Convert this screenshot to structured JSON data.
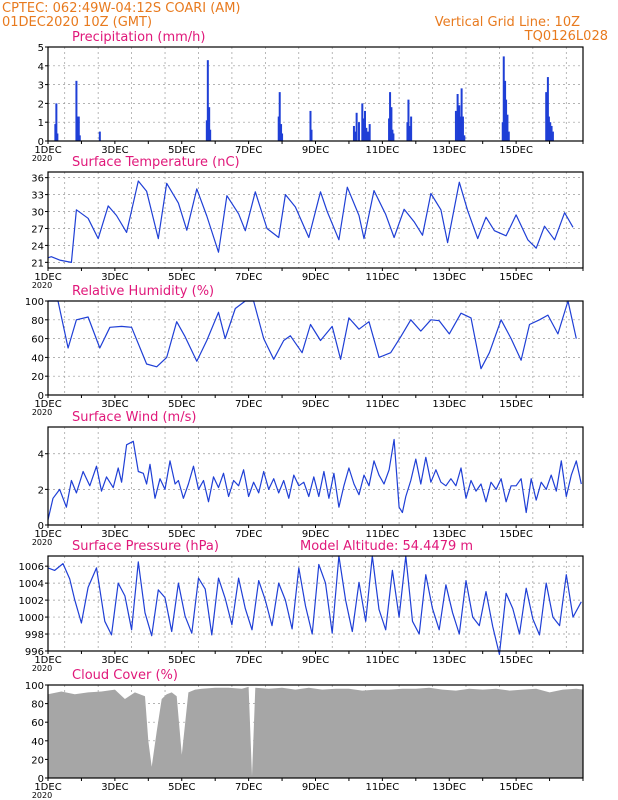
{
  "header": {
    "line1": "CPTEC:   062:49W-04:12S   COARI (AM)",
    "line2": "01DEC2020 10Z (GMT)",
    "right1": "Vertical Grid Line: 10Z",
    "right2": "TQ0126L028"
  },
  "colors": {
    "header": "#e87a1e",
    "title": "#e0187a",
    "series": "#1f3fd6",
    "cloud": "#a6a6a6",
    "grid": "#9a9a9a",
    "frame": "#000000"
  },
  "x_ticks": [
    "1DEC",
    "3DEC",
    "5DEC",
    "7DEC",
    "9DEC",
    "11DEC",
    "13DEC",
    "15DEC"
  ],
  "x_tick_overflow": "2020",
  "chart_data": [
    {
      "type": "bar",
      "title": "Precipitation (mm/h)",
      "ylim": [
        0,
        5
      ],
      "yticks": [
        "0",
        "1",
        "2",
        "3",
        "4",
        "5"
      ],
      "grid": true,
      "x_days": [
        0.22,
        0.25,
        0.28,
        0.85,
        0.88,
        0.92,
        0.95,
        1.55,
        4.75,
        4.78,
        4.82,
        4.85,
        6.9,
        6.93,
        6.97,
        7.0,
        7.85,
        7.88,
        9.15,
        9.2,
        9.23,
        9.3,
        9.4,
        9.43,
        9.48,
        9.52,
        9.57,
        9.62,
        10.2,
        10.23,
        10.27,
        10.3,
        10.33,
        10.75,
        10.78,
        10.82,
        10.86,
        12.2,
        12.25,
        12.3,
        12.33,
        12.37,
        12.41,
        12.45,
        13.6,
        13.63,
        13.67,
        13.7,
        13.74,
        13.78,
        14.9,
        14.95,
        14.98,
        15.02,
        15.06,
        15.1
      ],
      "values": [
        0.9,
        2.0,
        0.4,
        3.2,
        1.3,
        1.3,
        0.3,
        0.5,
        1.1,
        4.3,
        1.8,
        0.6,
        1.3,
        2.6,
        0.9,
        0.4,
        1.6,
        0.6,
        0.8,
        0.5,
        1.5,
        1.0,
        2.0,
        1.2,
        1.6,
        0.7,
        0.5,
        0.9,
        1.2,
        2.6,
        1.8,
        0.6,
        0.4,
        1.0,
        2.2,
        0.8,
        1.3,
        1.6,
        2.5,
        1.9,
        1.3,
        2.8,
        1.3,
        0.3,
        1.0,
        4.5,
        3.2,
        2.2,
        1.4,
        0.5,
        2.6,
        3.4,
        1.3,
        1.0,
        0.8,
        0.5
      ]
    },
    {
      "type": "line",
      "title": "Surface Temperature (nC)",
      "ylim": [
        20,
        37
      ],
      "yticks": [
        "21",
        "24",
        "27",
        "30",
        "33",
        "36"
      ],
      "grid": true,
      "x_days": [
        0.0,
        0.1,
        0.35,
        0.7,
        0.85,
        1.2,
        1.5,
        1.8,
        2.05,
        2.35,
        2.7,
        2.95,
        3.3,
        3.55,
        3.9,
        4.15,
        4.45,
        4.75,
        5.1,
        5.35,
        5.7,
        5.9,
        6.2,
        6.55,
        6.9,
        7.1,
        7.4,
        7.8,
        8.15,
        8.35,
        8.7,
        8.95,
        9.3,
        9.45,
        9.75,
        10.1,
        10.35,
        10.65,
        10.95,
        11.2,
        11.45,
        11.75,
        11.95,
        12.3,
        12.55,
        12.85,
        13.1,
        13.35,
        13.7,
        14.0,
        14.35,
        14.6,
        14.85,
        15.15,
        15.45,
        15.7
      ],
      "values": [
        21.8,
        22.0,
        21.4,
        21.0,
        30.3,
        28.8,
        25.2,
        31.0,
        29.3,
        26.3,
        35.4,
        33.6,
        25.2,
        35.0,
        31.5,
        26.7,
        34.0,
        29.2,
        22.8,
        32.8,
        29.6,
        26.6,
        33.5,
        27.0,
        25.4,
        33.0,
        30.8,
        25.4,
        33.5,
        30.0,
        25.0,
        34.3,
        29.3,
        25.2,
        33.7,
        29.5,
        25.4,
        30.4,
        28.2,
        25.8,
        33.2,
        30.3,
        24.5,
        35.2,
        30.2,
        25.2,
        29.0,
        26.6,
        25.7,
        29.4,
        25.0,
        23.5,
        27.4,
        25.0,
        29.8,
        27.2
      ]
    },
    {
      "type": "line",
      "title": "Relative Humidity (%)",
      "ylim": [
        0,
        100
      ],
      "yticks": [
        "0",
        "20",
        "40",
        "60",
        "80",
        "100"
      ],
      "grid": true,
      "x_days": [
        0.0,
        0.3,
        0.6,
        0.85,
        1.2,
        1.55,
        1.85,
        2.2,
        2.5,
        2.95,
        3.25,
        3.55,
        3.85,
        4.1,
        4.45,
        4.75,
        5.1,
        5.3,
        5.6,
        5.9,
        6.15,
        6.45,
        6.75,
        7.05,
        7.25,
        7.6,
        7.85,
        8.15,
        8.5,
        8.75,
        9.0,
        9.3,
        9.6,
        9.9,
        10.25,
        10.55,
        10.85,
        11.15,
        11.45,
        11.7,
        12.0,
        12.35,
        12.65,
        12.95,
        13.2,
        13.55,
        13.85,
        14.15,
        14.4,
        14.7,
        14.95,
        15.25,
        15.55,
        15.8
      ],
      "values": [
        100,
        100,
        50,
        80,
        83,
        50,
        72,
        73,
        72,
        33,
        30,
        40,
        78,
        62,
        36,
        58,
        88,
        60,
        92,
        100,
        100,
        60,
        38,
        58,
        63,
        45,
        75,
        58,
        73,
        38,
        82,
        70,
        78,
        40,
        45,
        62,
        80,
        68,
        80,
        79,
        65,
        87,
        82,
        28,
        45,
        80,
        60,
        37,
        75,
        80,
        85,
        65,
        100,
        60
      ]
    },
    {
      "type": "line",
      "title": "Surface Wind (m/s)",
      "ylim": [
        0,
        5.5
      ],
      "yticks": [
        "0",
        "2",
        "4"
      ],
      "grid": true,
      "x_days": [
        0.0,
        0.15,
        0.35,
        0.55,
        0.7,
        0.85,
        1.05,
        1.25,
        1.45,
        1.6,
        1.75,
        1.95,
        2.1,
        2.2,
        2.35,
        2.55,
        2.7,
        2.85,
        2.95,
        3.05,
        3.2,
        3.35,
        3.5,
        3.65,
        3.8,
        3.9,
        4.05,
        4.2,
        4.35,
        4.5,
        4.65,
        4.8,
        4.95,
        5.1,
        5.25,
        5.4,
        5.55,
        5.7,
        5.85,
        6.0,
        6.15,
        6.3,
        6.45,
        6.6,
        6.75,
        6.9,
        7.05,
        7.2,
        7.35,
        7.5,
        7.65,
        7.8,
        7.95,
        8.1,
        8.25,
        8.4,
        8.55,
        8.7,
        8.85,
        9.0,
        9.15,
        9.3,
        9.45,
        9.6,
        9.75,
        9.9,
        10.05,
        10.2,
        10.35,
        10.5,
        10.6,
        10.7,
        10.85,
        11.0,
        11.15,
        11.3,
        11.45,
        11.6,
        11.75,
        11.9,
        12.05,
        12.2,
        12.35,
        12.5,
        12.65,
        12.8,
        12.95,
        13.1,
        13.25,
        13.4,
        13.55,
        13.7,
        13.85,
        14.0,
        14.15,
        14.3,
        14.45,
        14.6,
        14.75,
        14.9,
        15.05,
        15.2,
        15.35,
        15.5,
        15.65,
        15.8,
        15.95
      ],
      "values": [
        0.3,
        1.5,
        2.0,
        1.0,
        2.5,
        1.8,
        3.0,
        2.2,
        3.3,
        1.9,
        2.7,
        2.1,
        3.2,
        2.4,
        4.5,
        4.7,
        3.0,
        2.9,
        2.3,
        3.4,
        1.5,
        2.6,
        2.0,
        3.6,
        2.3,
        2.5,
        1.5,
        2.3,
        3.3,
        2.0,
        2.5,
        1.3,
        2.7,
        2.1,
        2.9,
        1.6,
        2.5,
        2.2,
        3.1,
        1.6,
        2.4,
        1.8,
        3.0,
        2.0,
        2.6,
        1.8,
        2.5,
        1.5,
        2.8,
        2.2,
        2.4,
        1.6,
        2.7,
        1.6,
        3.0,
        1.5,
        2.9,
        1.0,
        2.2,
        3.2,
        2.3,
        1.7,
        2.8,
        2.2,
        3.6,
        2.8,
        2.3,
        3.1,
        4.8,
        1.0,
        0.7,
        1.6,
        2.5,
        3.7,
        2.3,
        3.8,
        2.4,
        3.1,
        2.4,
        2.2,
        2.6,
        2.2,
        3.2,
        1.5,
        2.5,
        1.9,
        2.3,
        1.3,
        2.4,
        2.0,
        2.6,
        1.3,
        2.2,
        2.2,
        2.6,
        0.7,
        2.6,
        1.4,
        2.4,
        2.0,
        2.8,
        1.9,
        3.6,
        1.6,
        2.8,
        3.6,
        2.3
      ]
    },
    {
      "type": "line",
      "title": "Surface Pressure (hPa)",
      "annotation": "Model Altitude: 54.4479 m",
      "ylim": [
        996,
        1007.2
      ],
      "yticks": [
        "996",
        "998",
        "1000",
        "1002",
        "1004",
        "1006"
      ],
      "grid": true,
      "x_days": [
        0.0,
        0.2,
        0.45,
        0.65,
        0.8,
        1.0,
        1.2,
        1.45,
        1.7,
        1.9,
        2.1,
        2.3,
        2.5,
        2.7,
        2.9,
        3.1,
        3.3,
        3.5,
        3.7,
        3.9,
        4.1,
        4.3,
        4.5,
        4.7,
        4.9,
        5.1,
        5.3,
        5.5,
        5.7,
        5.9,
        6.1,
        6.3,
        6.5,
        6.7,
        6.9,
        7.1,
        7.3,
        7.5,
        7.7,
        7.9,
        8.1,
        8.3,
        8.5,
        8.7,
        8.9,
        9.1,
        9.3,
        9.5,
        9.7,
        9.9,
        10.1,
        10.3,
        10.5,
        10.7,
        10.9,
        11.1,
        11.3,
        11.5,
        11.7,
        11.9,
        12.1,
        12.3,
        12.5,
        12.7,
        12.9,
        13.1,
        13.3,
        13.5,
        13.7,
        13.9,
        14.1,
        14.3,
        14.5,
        14.7,
        14.9,
        15.1,
        15.3,
        15.5,
        15.7,
        15.95
      ],
      "values": [
        1005.8,
        1005.5,
        1006.3,
        1004.5,
        1002.0,
        999.3,
        1003.5,
        1005.8,
        999.5,
        997.9,
        1004.0,
        1002.5,
        998.5,
        1006.5,
        1000.5,
        997.8,
        1003.2,
        1002.3,
        998.3,
        1004.0,
        1000.1,
        998.1,
        1004.6,
        1003.3,
        997.9,
        1004.6,
        1002.2,
        999.1,
        1004.6,
        1001.0,
        998.5,
        1004.3,
        1002.0,
        999.0,
        1004.0,
        1002.0,
        998.6,
        1005.8,
        1001.3,
        998.0,
        1006.2,
        1004.0,
        998.1,
        1007.2,
        1002.0,
        998.3,
        1004.1,
        999.5,
        1007.2,
        1000.9,
        998.5,
        1005.5,
        1000.0,
        1007.2,
        999.5,
        998.0,
        1005.0,
        1001.0,
        998.5,
        1003.8,
        1000.5,
        998.0,
        1004.3,
        1000.0,
        999.0,
        1003.0,
        998.9,
        995.6,
        1002.8,
        1001.0,
        998.0,
        1003.4,
        999.8,
        997.9,
        1004.0,
        1000.0,
        999.0,
        1005.0,
        1000.0,
        1001.8
      ]
    },
    {
      "type": "area",
      "title": "Cloud Cover (%)",
      "ylim": [
        0,
        100
      ],
      "yticks": [
        "0",
        "20",
        "40",
        "60",
        "80",
        "100"
      ],
      "grid": true,
      "x_days": [
        0.0,
        0.4,
        0.8,
        1.2,
        1.6,
        2.0,
        2.3,
        2.6,
        2.9,
        3.0,
        3.1,
        3.25,
        3.4,
        3.55,
        3.7,
        3.85,
        4.0,
        4.2,
        4.4,
        4.6,
        5.0,
        5.4,
        5.8,
        6.0,
        6.1,
        6.2,
        6.6,
        7.0,
        7.4,
        7.8,
        8.2,
        8.6,
        9.0,
        9.4,
        9.8,
        10.2,
        10.6,
        11.0,
        11.4,
        11.8,
        12.2,
        12.6,
        13.0,
        13.4,
        13.8,
        14.2,
        14.6,
        15.0,
        15.4,
        15.8,
        16.0
      ],
      "values": [
        90,
        93,
        90,
        92,
        93,
        95,
        85,
        92,
        88,
        40,
        12,
        50,
        85,
        90,
        92,
        88,
        25,
        92,
        95,
        96,
        97,
        97,
        96,
        98,
        2,
        97,
        96,
        97,
        95,
        97,
        95,
        96,
        96,
        94,
        95,
        95,
        96,
        96,
        97,
        95,
        94,
        96,
        95,
        96,
        94,
        95,
        96,
        92,
        95,
        96,
        95
      ]
    }
  ]
}
